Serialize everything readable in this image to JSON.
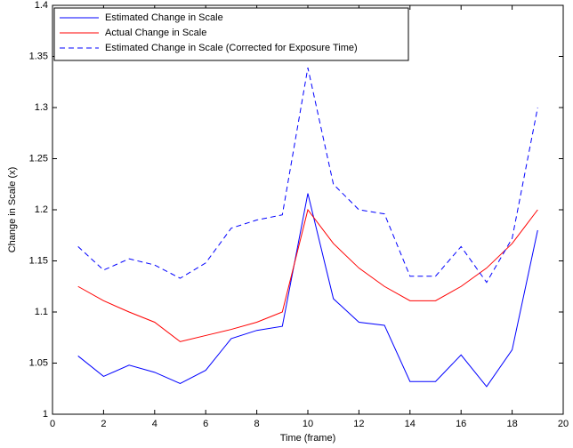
{
  "chart_data": {
    "type": "line",
    "x_label": "Time (frame)",
    "y_label": "Change in Scale (x)",
    "x": [
      1,
      2,
      3,
      4,
      5,
      6,
      7,
      8,
      9,
      10,
      11,
      12,
      13,
      14,
      15,
      16,
      17,
      18,
      19
    ],
    "series": [
      {
        "name": "Estimated Change in Scale",
        "color": "#0000ff",
        "dashed": false,
        "values": [
          1.057,
          1.037,
          1.048,
          1.041,
          1.03,
          1.043,
          1.074,
          1.082,
          1.086,
          1.216,
          1.113,
          1.09,
          1.087,
          1.032,
          1.032,
          1.058,
          1.027,
          1.063,
          1.18
        ]
      },
      {
        "name": "Actual Change in Scale",
        "color": "#ff0000",
        "dashed": false,
        "values": [
          1.125,
          1.111,
          1.1,
          1.09,
          1.071,
          1.077,
          1.083,
          1.09,
          1.1,
          1.2,
          1.167,
          1.143,
          1.125,
          1.111,
          1.111,
          1.125,
          1.143,
          1.167,
          1.2
        ]
      },
      {
        "name": "Estimated Change in Scale (Corrected for Exposure Time)",
        "color": "#0000ff",
        "dashed": true,
        "values": [
          1.164,
          1.141,
          1.152,
          1.146,
          1.133,
          1.148,
          1.182,
          1.19,
          1.195,
          1.339,
          1.225,
          1.2,
          1.196,
          1.135,
          1.135,
          1.164,
          1.129,
          1.172,
          1.3
        ]
      }
    ],
    "xlim": [
      0,
      20
    ],
    "xticks": [
      0,
      2,
      4,
      6,
      8,
      10,
      12,
      14,
      16,
      18,
      20
    ],
    "ylim": [
      1,
      1.4
    ],
    "yticks": [
      1,
      1.05,
      1.1,
      1.15,
      1.2,
      1.25,
      1.3,
      1.35,
      1.4
    ],
    "grid": false,
    "legend": "upper-left"
  }
}
